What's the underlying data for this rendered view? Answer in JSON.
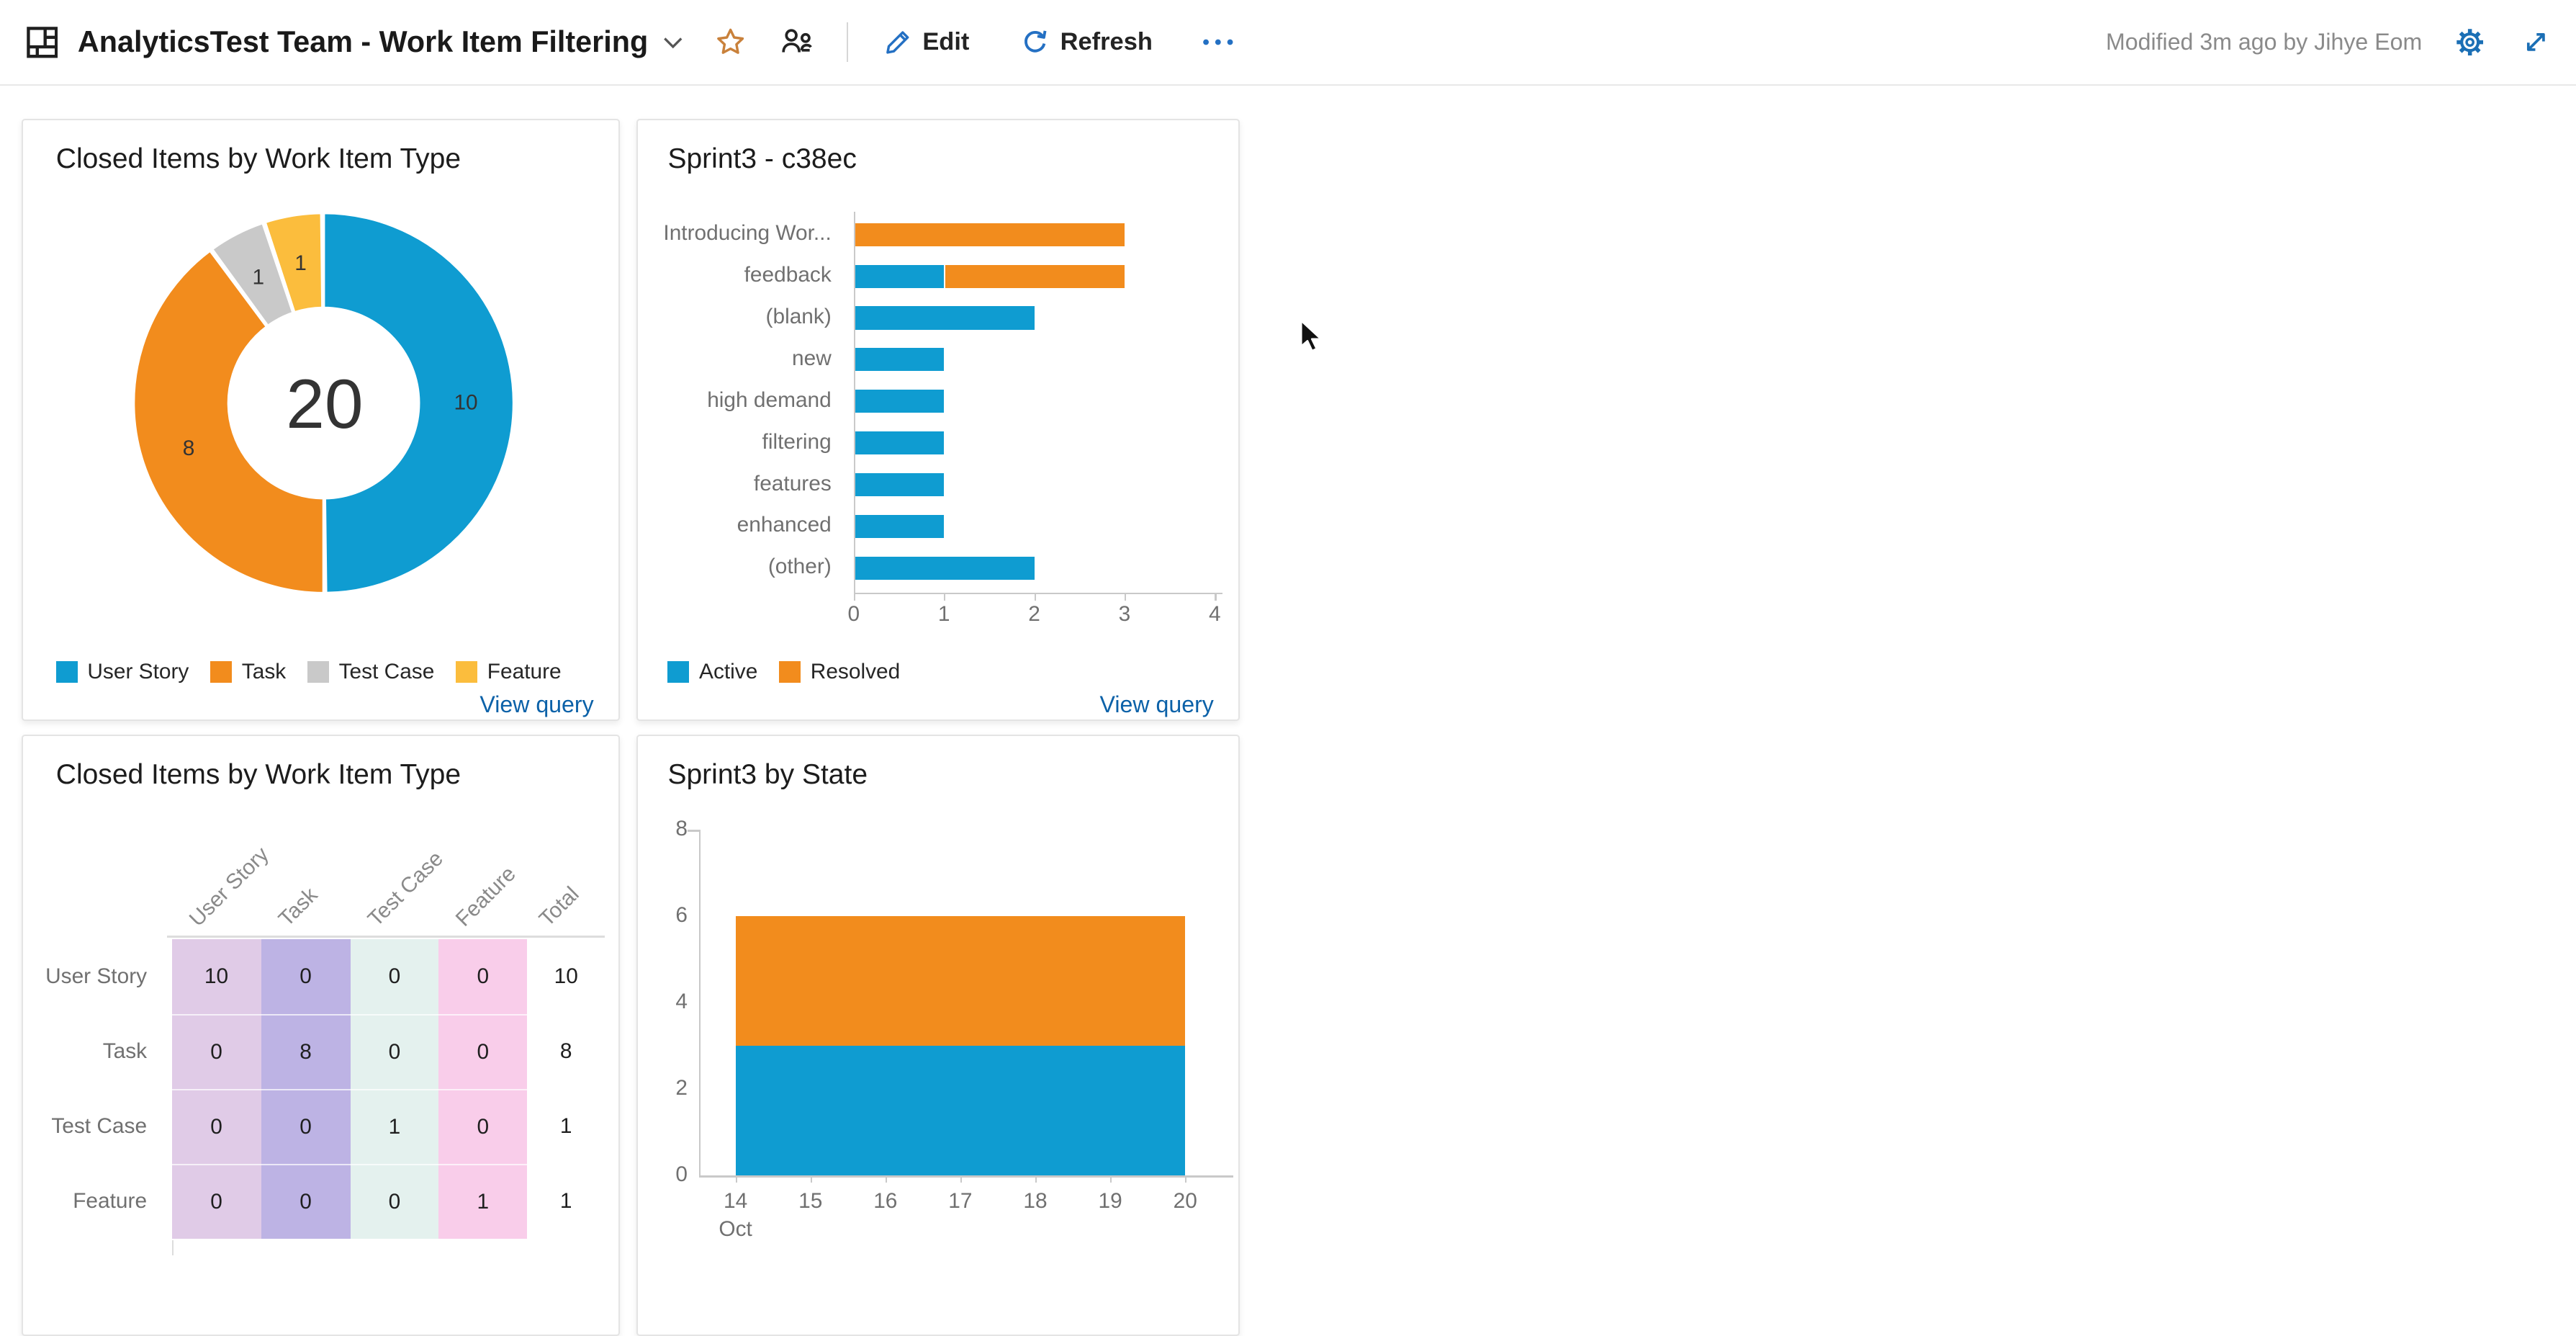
{
  "header": {
    "title": "AnalyticsTest Team - Work Item Filtering",
    "edit_label": "Edit",
    "refresh_label": "Refresh",
    "modified_text": "Modified 3m ago by Jihye Eom"
  },
  "colors": {
    "chart_blue": "#0F9CD1",
    "chart_orange": "#F28C1D",
    "chart_gray": "#C9C9C9",
    "chart_yellow": "#FBBD3D",
    "link_blue": "#0B61A8",
    "command_blue": "#2470C3"
  },
  "chart_data": [
    {
      "type": "donut",
      "title": "Closed Items by Work Item Type",
      "center_total": "20",
      "slices": [
        {
          "label": "User Story",
          "value": 10,
          "color": "#0F9CD1"
        },
        {
          "label": "Task",
          "value": 8,
          "color": "#F28C1D"
        },
        {
          "label": "Test Case",
          "value": 1,
          "color": "#C9C9C9"
        },
        {
          "label": "Feature",
          "value": 1,
          "color": "#FBBD3D"
        }
      ],
      "legend_position": "bottom",
      "footer_link": "View query"
    },
    {
      "type": "bar-horizontal-stacked",
      "title": "Sprint3 - c38ec",
      "categories": [
        "Introducing Wor...",
        "feedback",
        "(blank)",
        "new",
        "high demand",
        "filtering",
        "features",
        "enhanced",
        "(other)"
      ],
      "series": [
        {
          "name": "Active",
          "color": "#0F9CD1",
          "values": [
            0,
            1,
            2,
            1,
            1,
            1,
            1,
            1,
            2
          ]
        },
        {
          "name": "Resolved",
          "color": "#F28C1D",
          "values": [
            3,
            2,
            0,
            0,
            0,
            0,
            0,
            0,
            0
          ]
        }
      ],
      "xlim": [
        0,
        4
      ],
      "xticks": [
        "0",
        "1",
        "2",
        "3",
        "4"
      ],
      "legend_position": "bottom",
      "footer_link": "View query"
    },
    {
      "type": "table",
      "title": "Closed Items by Work Item Type",
      "columns": [
        "User Story",
        "Task",
        "Test Case",
        "Feature",
        "Total"
      ],
      "column_colors": [
        "#E0CBE7",
        "#BDB3E4",
        "#E4F1EE",
        "#F9CDEA",
        ""
      ],
      "rows": [
        {
          "label": "User Story",
          "values": [
            "10",
            "0",
            "0",
            "0",
            "10"
          ]
        },
        {
          "label": "Task",
          "values": [
            "0",
            "8",
            "0",
            "0",
            "8"
          ]
        },
        {
          "label": "Test Case",
          "values": [
            "0",
            "0",
            "1",
            "0",
            "1"
          ]
        },
        {
          "label": "Feature",
          "values": [
            "0",
            "0",
            "0",
            "1",
            "1"
          ]
        }
      ]
    },
    {
      "type": "area-stacked",
      "title": "Sprint3 by State",
      "x": [
        "14",
        "15",
        "16",
        "17",
        "18",
        "19",
        "20"
      ],
      "x_month_label": "Oct",
      "ylim": [
        0,
        8
      ],
      "yticks": [
        "0",
        "2",
        "4",
        "6",
        "8"
      ],
      "series": [
        {
          "color": "#0F9CD1",
          "values": [
            3,
            3,
            3,
            3,
            3,
            3,
            3
          ]
        },
        {
          "color": "#F28C1D",
          "values": [
            3,
            3,
            3,
            3,
            3,
            3,
            3
          ]
        }
      ]
    }
  ]
}
